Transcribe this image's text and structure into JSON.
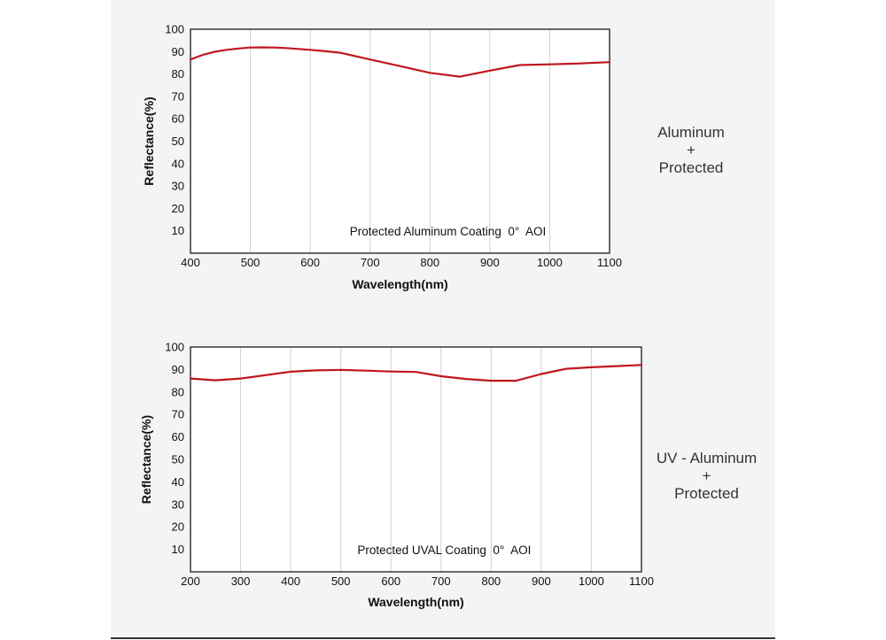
{
  "chart_data": [
    {
      "type": "line",
      "title": "",
      "annotation": "Protected Aluminum Coating  0°  AOI",
      "xlabel": "Wavelength(nm)",
      "ylabel": "Reflectance(%)",
      "xlim": [
        400,
        1100
      ],
      "ylim": [
        0,
        100
      ],
      "xticks": [
        400,
        500,
        600,
        700,
        800,
        900,
        1000,
        1100
      ],
      "yticks": [
        10,
        20,
        30,
        40,
        50,
        60,
        70,
        80,
        90,
        100
      ],
      "grid": "vertical",
      "line_color": "#c0161c",
      "series": [
        {
          "x": [
            400,
            420,
            440,
            460,
            480,
            500,
            520,
            540,
            560,
            580,
            600,
            620,
            650,
            700,
            750,
            800,
            850,
            900,
            950,
            1000,
            1050,
            1100
          ],
          "y": [
            86.5,
            88.5,
            89.9,
            90.8,
            91.4,
            91.8,
            91.9,
            91.8,
            91.6,
            91.2,
            90.8,
            90.3,
            89.5,
            86.5,
            83.5,
            80.5,
            78.8,
            81.5,
            84.0,
            84.3,
            84.7,
            85.3
          ]
        }
      ]
    },
    {
      "type": "line",
      "title": "",
      "annotation": "Protected UVAL Coating  0°  AOI",
      "xlabel": "Wavelength(nm)",
      "ylabel": "Reflectance(%)",
      "xlim": [
        200,
        1100
      ],
      "ylim": [
        0,
        100
      ],
      "xticks": [
        200,
        300,
        400,
        500,
        600,
        700,
        800,
        900,
        1000,
        1100
      ],
      "yticks": [
        10,
        20,
        30,
        40,
        50,
        60,
        70,
        80,
        90,
        100
      ],
      "grid": "vertical",
      "line_color": "#c0161c",
      "series": [
        {
          "x": [
            200,
            250,
            300,
            350,
            400,
            450,
            500,
            550,
            600,
            650,
            700,
            750,
            800,
            850,
            900,
            950,
            1000,
            1050,
            1100
          ],
          "y": [
            86.0,
            85.2,
            86.0,
            87.5,
            89.0,
            89.6,
            89.8,
            89.5,
            89.1,
            88.9,
            87.0,
            85.8,
            85.0,
            85.0,
            88.0,
            90.3,
            91.0,
            91.5,
            92.0
          ]
        }
      ]
    }
  ],
  "side_labels": [
    {
      "line1": "Aluminum",
      "line2": "+",
      "line3": "Protected"
    },
    {
      "line1": "UV - Aluminum",
      "line2": "+",
      "line3": "Protected"
    }
  ]
}
